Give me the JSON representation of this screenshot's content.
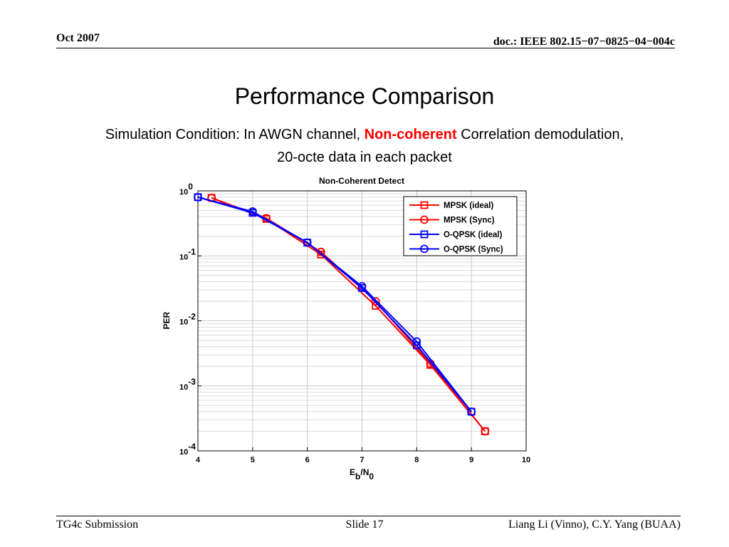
{
  "header": {
    "date": "Oct 2007",
    "doc": "doc.: IEEE 802.15−07−0825−04−004c"
  },
  "slide": {
    "title": "Performance Comparison",
    "subtitle_pre": "Simulation Condition: In AWGN channel, ",
    "subtitle_emph": "Non-coherent",
    "subtitle_post": " Correlation demodulation,",
    "subtitle_line2": "20-octe data in each packet"
  },
  "footer": {
    "left": "TG4c Submission",
    "center": "Slide 17",
    "right": "Liang Li (Vinno), C.Y. Yang (BUAA)"
  },
  "chart_data": {
    "type": "line",
    "title": "Non-Coherent Detect",
    "xlabel_main": "E",
    "xlabel_sub1": "b",
    "xlabel_mid": "/N",
    "xlabel_sub2": "0",
    "ylabel": "PER",
    "xlim": [
      4,
      10
    ],
    "ylim": [
      0.0001,
      1
    ],
    "yscale": "log",
    "grid": true,
    "legend_position": "top-right",
    "x_ticks": [
      4,
      5,
      6,
      7,
      8,
      9,
      10
    ],
    "y_ticks": [
      {
        "base": "10",
        "exp": "0",
        "value": 1
      },
      {
        "base": "10",
        "exp": "-1",
        "value": 0.1
      },
      {
        "base": "10",
        "exp": "-2",
        "value": 0.01
      },
      {
        "base": "10",
        "exp": "-3",
        "value": 0.001
      },
      {
        "base": "10",
        "exp": "-4",
        "value": 0.0001
      }
    ],
    "series": [
      {
        "name": "MPSK (ideal)",
        "color": "#ff0000",
        "marker": "square",
        "x": [
          4.25,
          5.25,
          6.25,
          7.25,
          8.25,
          9.25
        ],
        "y": [
          0.78,
          0.37,
          0.105,
          0.017,
          0.0021,
          0.0002
        ]
      },
      {
        "name": "MPSK (Sync)",
        "color": "#ff0000",
        "marker": "circle",
        "x": [
          4.25,
          5.25,
          6.25,
          7.25,
          8.25,
          9.25
        ],
        "y": [
          0.78,
          0.38,
          0.115,
          0.02,
          0.0022,
          0.0002
        ]
      },
      {
        "name": "O-QPSK (ideal)",
        "color": "#0000ff",
        "marker": "square",
        "x": [
          4,
          5,
          6,
          7,
          8,
          9
        ],
        "y": [
          0.8,
          0.46,
          0.16,
          0.032,
          0.0042,
          0.0004
        ]
      },
      {
        "name": "O-QPSK (Sync)",
        "color": "#0000ff",
        "marker": "circle",
        "x": [
          4,
          5,
          6,
          7,
          8,
          9
        ],
        "y": [
          0.8,
          0.48,
          0.16,
          0.034,
          0.0048,
          0.0004
        ]
      }
    ]
  }
}
